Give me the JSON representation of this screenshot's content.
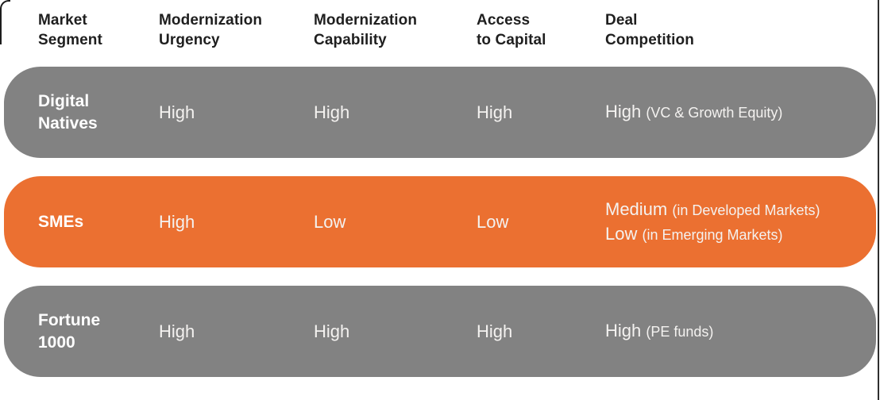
{
  "colors": {
    "row_gray": "#828282",
    "row_orange": "#EB7031",
    "header_text": "#1f1f1f",
    "segment_text": "#ffffff",
    "cell_text": "#F4F2F0",
    "crop_border": "#1c1c1c"
  },
  "header": {
    "columns": [
      {
        "line1": "Market",
        "line2": "Segment"
      },
      {
        "line1": "Modernization",
        "line2": "Urgency"
      },
      {
        "line1": "Modernization",
        "line2": "Capability"
      },
      {
        "line1": "Access",
        "line2": "to Capital"
      },
      {
        "line1": "Deal",
        "line2": "Competition"
      }
    ]
  },
  "rows": [
    {
      "theme": "gray",
      "segment": {
        "line1": "Digital",
        "line2": "Natives"
      },
      "modernization_urgency": "High",
      "modernization_capability": "High",
      "access_to_capital": "High",
      "deal_competition": [
        {
          "level": "High",
          "note": "(VC & Growth Equity)"
        }
      ]
    },
    {
      "theme": "orange",
      "segment": {
        "line1": "SMEs",
        "line2": ""
      },
      "modernization_urgency": "High",
      "modernization_capability": "Low",
      "access_to_capital": "Low",
      "deal_competition": [
        {
          "level": "Medium",
          "note": "(in Developed Markets)"
        },
        {
          "level": "Low",
          "note": "(in Emerging Markets)"
        }
      ]
    },
    {
      "theme": "gray",
      "segment": {
        "line1": "Fortune",
        "line2": "1000"
      },
      "modernization_urgency": "High",
      "modernization_capability": "High",
      "access_to_capital": "High",
      "deal_competition": [
        {
          "level": "High",
          "note": "(PE funds)"
        }
      ]
    }
  ]
}
